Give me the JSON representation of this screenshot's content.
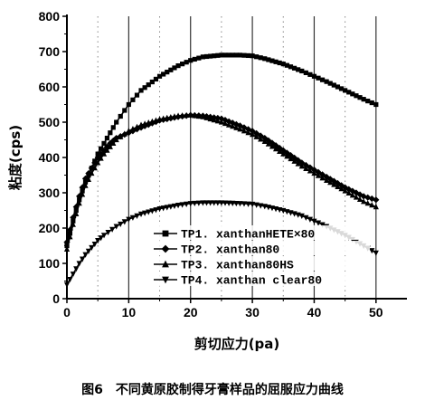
{
  "caption": "图6　不同黄原胶制得牙膏样品的屈服应力曲线",
  "chart_data": {
    "type": "line",
    "xlabel": "剪切应力(pa)",
    "ylabel": "粘度(cps)",
    "xlim": [
      0,
      55
    ],
    "ylim": [
      0,
      800
    ],
    "xticks": [
      0,
      10,
      20,
      30,
      40,
      50
    ],
    "yticks": [
      0,
      100,
      200,
      300,
      400,
      500,
      600,
      700,
      800
    ],
    "grid": "vertical dotted",
    "legend_position": "bottom-center",
    "series": [
      {
        "name": "TP1. xanthanHETE×80",
        "marker": "square",
        "x": [
          0,
          1,
          2,
          3,
          4,
          5,
          6,
          7,
          8,
          10,
          12,
          15,
          18,
          20,
          22,
          25,
          28,
          30,
          32,
          35,
          38,
          40,
          42,
          45,
          48,
          50
        ],
        "y": [
          150,
          220,
          280,
          330,
          370,
          410,
          440,
          470,
          500,
          550,
          590,
          630,
          660,
          675,
          685,
          690,
          690,
          688,
          680,
          665,
          645,
          630,
          615,
          590,
          565,
          550
        ]
      },
      {
        "name": "TP2. xanthan80",
        "marker": "diamond",
        "x": [
          0,
          1,
          2,
          3,
          4,
          5,
          6,
          7,
          8,
          10,
          12,
          15,
          18,
          20,
          22,
          25,
          28,
          30,
          32,
          35,
          38,
          40,
          42,
          45,
          48,
          50
        ],
        "y": [
          160,
          230,
          290,
          340,
          370,
          400,
          420,
          440,
          455,
          470,
          485,
          505,
          515,
          520,
          518,
          510,
          490,
          475,
          455,
          420,
          385,
          365,
          345,
          315,
          290,
          280
        ]
      },
      {
        "name": "TP3. xanthan80HS",
        "marker": "triangle-up",
        "x": [
          0,
          1,
          2,
          3,
          4,
          5,
          6,
          7,
          8,
          10,
          12,
          15,
          18,
          20,
          22,
          25,
          28,
          30,
          32,
          35,
          38,
          40,
          42,
          45,
          48,
          50
        ],
        "y": [
          140,
          210,
          270,
          320,
          355,
          385,
          410,
          430,
          450,
          475,
          492,
          508,
          518,
          520,
          515,
          500,
          480,
          465,
          445,
          410,
          375,
          355,
          335,
          305,
          275,
          260
        ]
      },
      {
        "name": "TP4. xanthan clear80",
        "marker": "triangle-down",
        "x": [
          0,
          1,
          2,
          3,
          4,
          5,
          6,
          8,
          10,
          12,
          15,
          18,
          20,
          22,
          25,
          28,
          30,
          32,
          35,
          38,
          40,
          42,
          45,
          48,
          50
        ],
        "y": [
          40,
          70,
          100,
          125,
          145,
          165,
          180,
          205,
          225,
          240,
          255,
          265,
          270,
          272,
          272,
          270,
          268,
          262,
          250,
          235,
          220,
          205,
          180,
          150,
          130
        ]
      }
    ]
  }
}
